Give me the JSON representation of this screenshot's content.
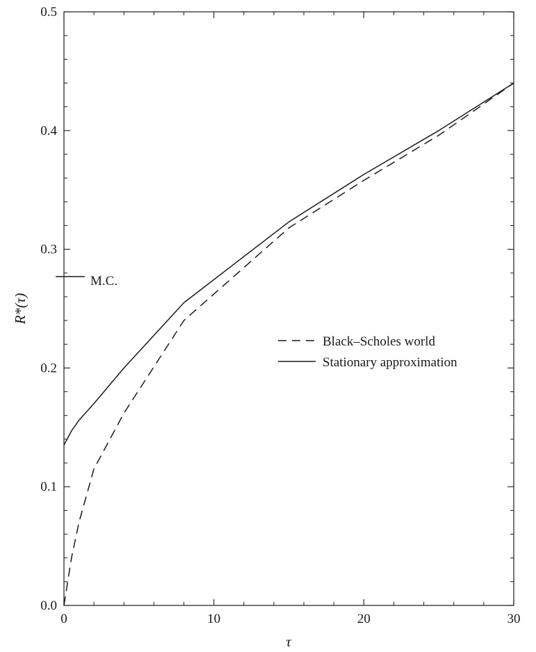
{
  "chart_data": {
    "type": "line",
    "title": "",
    "xlabel": "τ",
    "ylabel": "R*(τ)",
    "xlim": [
      0,
      30
    ],
    "ylim": [
      0,
      0.5
    ],
    "xticks": [
      0,
      10,
      20,
      30
    ],
    "xtick_labels": [
      "0",
      "10",
      "20",
      "30"
    ],
    "yticks": [
      0,
      0.1,
      0.2,
      0.3,
      0.4,
      0.5
    ],
    "ytick_labels": [
      "0.0",
      "0.1",
      "0.2",
      "0.3",
      "0.4",
      "0.5"
    ],
    "grid": false,
    "legend_position": "center-right",
    "series": [
      {
        "name": "Black–Scholes world",
        "style": "dashed",
        "color": "#1a1a1a",
        "x": [
          0,
          0.25,
          0.5,
          1,
          2,
          4,
          8,
          15,
          20,
          25,
          30
        ],
        "y": [
          0.0,
          0.02,
          0.04,
          0.07,
          0.115,
          0.162,
          0.24,
          0.318,
          0.358,
          0.396,
          0.44
        ]
      },
      {
        "name": "Stationary approximation",
        "style": "solid",
        "color": "#1a1a1a",
        "x": [
          0,
          0.5,
          1,
          2,
          4,
          8,
          15,
          20,
          25,
          30
        ],
        "y": [
          0.135,
          0.147,
          0.156,
          0.17,
          0.2,
          0.255,
          0.323,
          0.363,
          0.4,
          0.44
        ]
      }
    ],
    "annotations": [
      {
        "text": "M.C.",
        "x": 0,
        "y": 0.277,
        "marker": "short horizontal line at left axis"
      }
    ]
  }
}
